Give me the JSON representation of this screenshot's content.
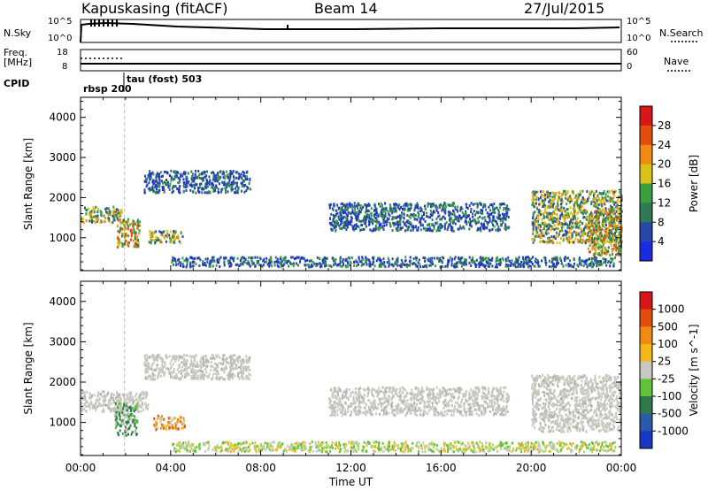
{
  "header": {
    "station": "Kapuskasing (fitACF)",
    "beam": "Beam 14",
    "date": "27/Jul/2015"
  },
  "strips": {
    "nsky_label": "N.Sky",
    "nsearch_label": "N.Search",
    "freq_label_1": "Freq.",
    "freq_label_2": "[MHz]",
    "nave_label": "Nave",
    "cpid_label": "CPID",
    "nsky_ticks": [
      "10^5",
      "10^0"
    ],
    "nsearch_ticks": [
      "10^5",
      "10^0"
    ],
    "freq_ticks": [
      "18",
      "8"
    ],
    "nave_ticks": [
      "60",
      "0"
    ],
    "cpid_annotations": [
      "rbsp 200",
      "tau (fost) 503"
    ]
  },
  "chart_data": [
    {
      "type": "heatmap",
      "name": "power",
      "ylabel": "Slant Range [km]",
      "yticks": [
        1000,
        2000,
        3000,
        4000
      ],
      "ylim": [
        180,
        4500
      ],
      "xlim": [
        0,
        24
      ],
      "colorbar_label": "Power [dB]",
      "colorbar_ticks": [
        "4",
        "8",
        "12",
        "16",
        "20",
        "24",
        "28"
      ],
      "colorbar_colors": [
        "#1a2ce0",
        "#2946a8",
        "#2f7a55",
        "#38a040",
        "#d7c21a",
        "#f08a12",
        "#e44d10",
        "#d81818"
      ],
      "features": [
        {
          "t0": 0.0,
          "t1": 1.8,
          "r0": 1400,
          "r1": 1800,
          "level": "mid"
        },
        {
          "t0": 1.6,
          "t1": 2.6,
          "r0": 800,
          "r1": 1500,
          "level": "high"
        },
        {
          "t0": 2.8,
          "t1": 7.5,
          "r0": 2150,
          "r1": 2700,
          "level": "low"
        },
        {
          "t0": 3.0,
          "t1": 4.5,
          "r0": 900,
          "r1": 1200,
          "level": "mid"
        },
        {
          "t0": 4.0,
          "t1": 23.7,
          "r0": 300,
          "r1": 550,
          "level": "low"
        },
        {
          "t0": 11.0,
          "t1": 19.0,
          "r0": 1200,
          "r1": 1900,
          "level": "low"
        },
        {
          "t0": 20.0,
          "t1": 24.0,
          "r0": 900,
          "r1": 2200,
          "level": "mid"
        },
        {
          "t0": 22.5,
          "t1": 24.0,
          "r0": 600,
          "r1": 1700,
          "level": "high"
        }
      ]
    },
    {
      "type": "heatmap",
      "name": "velocity",
      "ylabel": "Slant Range [km]",
      "yticks": [
        1000,
        2000,
        3000,
        4000
      ],
      "ylim": [
        180,
        4500
      ],
      "xlim": [
        0,
        24
      ],
      "xticks": [
        "00:00",
        "04:00",
        "08:00",
        "12:00",
        "16:00",
        "20:00",
        "00:00"
      ],
      "xlabel": "Time UT",
      "colorbar_label": "Velocity [m s^-1]",
      "colorbar_ticks": [
        "1000",
        "500",
        "100",
        "25",
        "-25",
        "-100",
        "-500",
        "-1000"
      ],
      "colorbar_colors": [
        "#1a36c4",
        "#2a5aa8",
        "#2f7a4a",
        "#5fc23a",
        "#c8c8c0",
        "#f2b81a",
        "#f08a12",
        "#e44d10",
        "#d81818"
      ],
      "features": [
        {
          "t0": 0.0,
          "t1": 3.0,
          "r0": 1300,
          "r1": 1800,
          "level": "ground"
        },
        {
          "t0": 1.5,
          "t1": 2.5,
          "r0": 700,
          "r1": 1500,
          "level": "toward"
        },
        {
          "t0": 2.8,
          "t1": 7.5,
          "r0": 2100,
          "r1": 2700,
          "level": "ground"
        },
        {
          "t0": 3.2,
          "t1": 4.6,
          "r0": 850,
          "r1": 1200,
          "level": "away"
        },
        {
          "t0": 4.0,
          "t1": 23.7,
          "r0": 300,
          "r1": 550,
          "level": "toward_weak"
        },
        {
          "t0": 11.0,
          "t1": 19.0,
          "r0": 1200,
          "r1": 1900,
          "level": "ground"
        },
        {
          "t0": 20.0,
          "t1": 24.0,
          "r0": 800,
          "r1": 2200,
          "level": "ground"
        }
      ]
    }
  ]
}
